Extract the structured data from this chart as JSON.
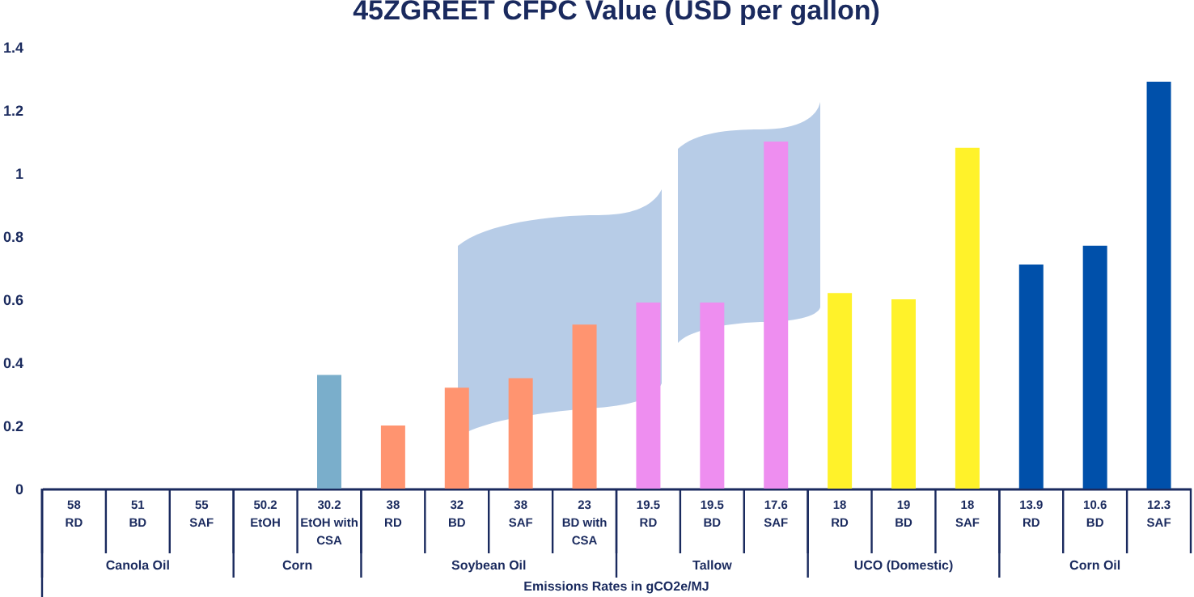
{
  "chart_data": {
    "type": "bar",
    "title": "45ZGREET CFPC Value (USD per gallon)",
    "xlabel": "Emissions Rates in gCO2e/MJ",
    "categories": [
      "58\nRD",
      "51\nBD",
      "55\nSAF",
      "50.2\nEtOH",
      "30.2\nEtOH with\nCSA",
      "38\nRD",
      "32\nBD",
      "38\nSAF",
      "23\nBD with\nCSA",
      "19.5\nRD",
      "19.5\nBD",
      "17.6\nSAF",
      "18\nRD",
      "19\nBD",
      "18\nSAF",
      "13.9\nRD",
      "10.6\nBD",
      "12.3\nSAF"
    ],
    "values": [
      0,
      0,
      0,
      0,
      0.36,
      0.2,
      0.32,
      0.35,
      0.52,
      0.59,
      0.59,
      1.1,
      0.62,
      0.6,
      1.08,
      0.71,
      0.77,
      1.29
    ],
    "colors": [
      "#7aaecb",
      "#7aaecb",
      "#7aaecb",
      "#7aaecb",
      "#7aaecb",
      "#ff9470",
      "#ff9470",
      "#ff9470",
      "#ff9470",
      "#ee8ef0",
      "#ee8ef0",
      "#ee8ef0",
      "#fff22a",
      "#fff22a",
      "#fff22a",
      "#0050aa",
      "#0050aa",
      "#0050aa"
    ],
    "ylim": [
      0,
      1.4
    ],
    "yticks": [
      0,
      0.2,
      0.4,
      0.6,
      0.8,
      1,
      1.2,
      1.4
    ],
    "grid": false,
    "annotations": [
      "Canola Oil",
      "Corn",
      "Soybean Oil",
      "Tallow",
      "UCO (Domestic)",
      "Corn Oil"
    ]
  }
}
